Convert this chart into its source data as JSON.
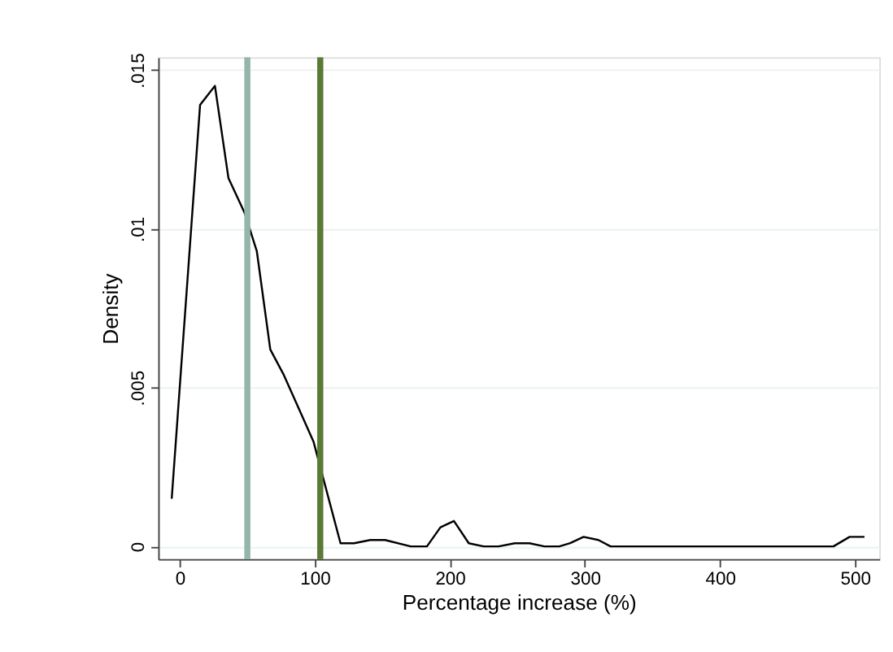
{
  "chart_data": {
    "type": "line",
    "xlabel": "Percentage increase (%)",
    "ylabel": "Density",
    "x": [
      -6,
      15,
      26,
      36,
      48,
      57,
      67,
      77,
      99,
      119,
      129,
      141,
      152,
      171,
      183,
      193,
      203,
      214,
      225,
      236,
      248,
      259,
      270,
      281,
      289,
      299,
      310,
      319,
      484,
      496,
      507
    ],
    "series": [
      {
        "color": "#000000",
        "values": [
          0.0015,
          0.0139,
          0.0145,
          0.0116,
          0.0105,
          0.0093,
          0.0062,
          0.0054,
          0.0033,
          0.0001,
          0.0001,
          0.0002,
          0.0002,
          0,
          0,
          0.0006,
          0.0008,
          0.0001,
          0,
          0,
          0.0001,
          0.0001,
          0,
          0,
          0.0001,
          0.0003,
          0.0002,
          0,
          0,
          0.0003,
          0.0003
        ]
      }
    ],
    "xlim": [
      -16,
      518
    ],
    "ylim": [
      -0.0004,
      0.0154
    ],
    "xticks": [
      0,
      100,
      200,
      300,
      400,
      500
    ],
    "yticks": [
      {
        "value": 0,
        "label": "0"
      },
      {
        "value": 0.005,
        "label": ".005"
      },
      {
        "value": 0.01,
        "label": ".01"
      },
      {
        "value": 0.015,
        "label": ".015"
      }
    ],
    "grid": "y",
    "marker": "none",
    "line_style": "solid",
    "ref_lines": [
      {
        "axis": "x",
        "value": 50,
        "color": "#93b5aa"
      },
      {
        "axis": "x",
        "value": 104,
        "color": "#5a7a35"
      }
    ]
  }
}
